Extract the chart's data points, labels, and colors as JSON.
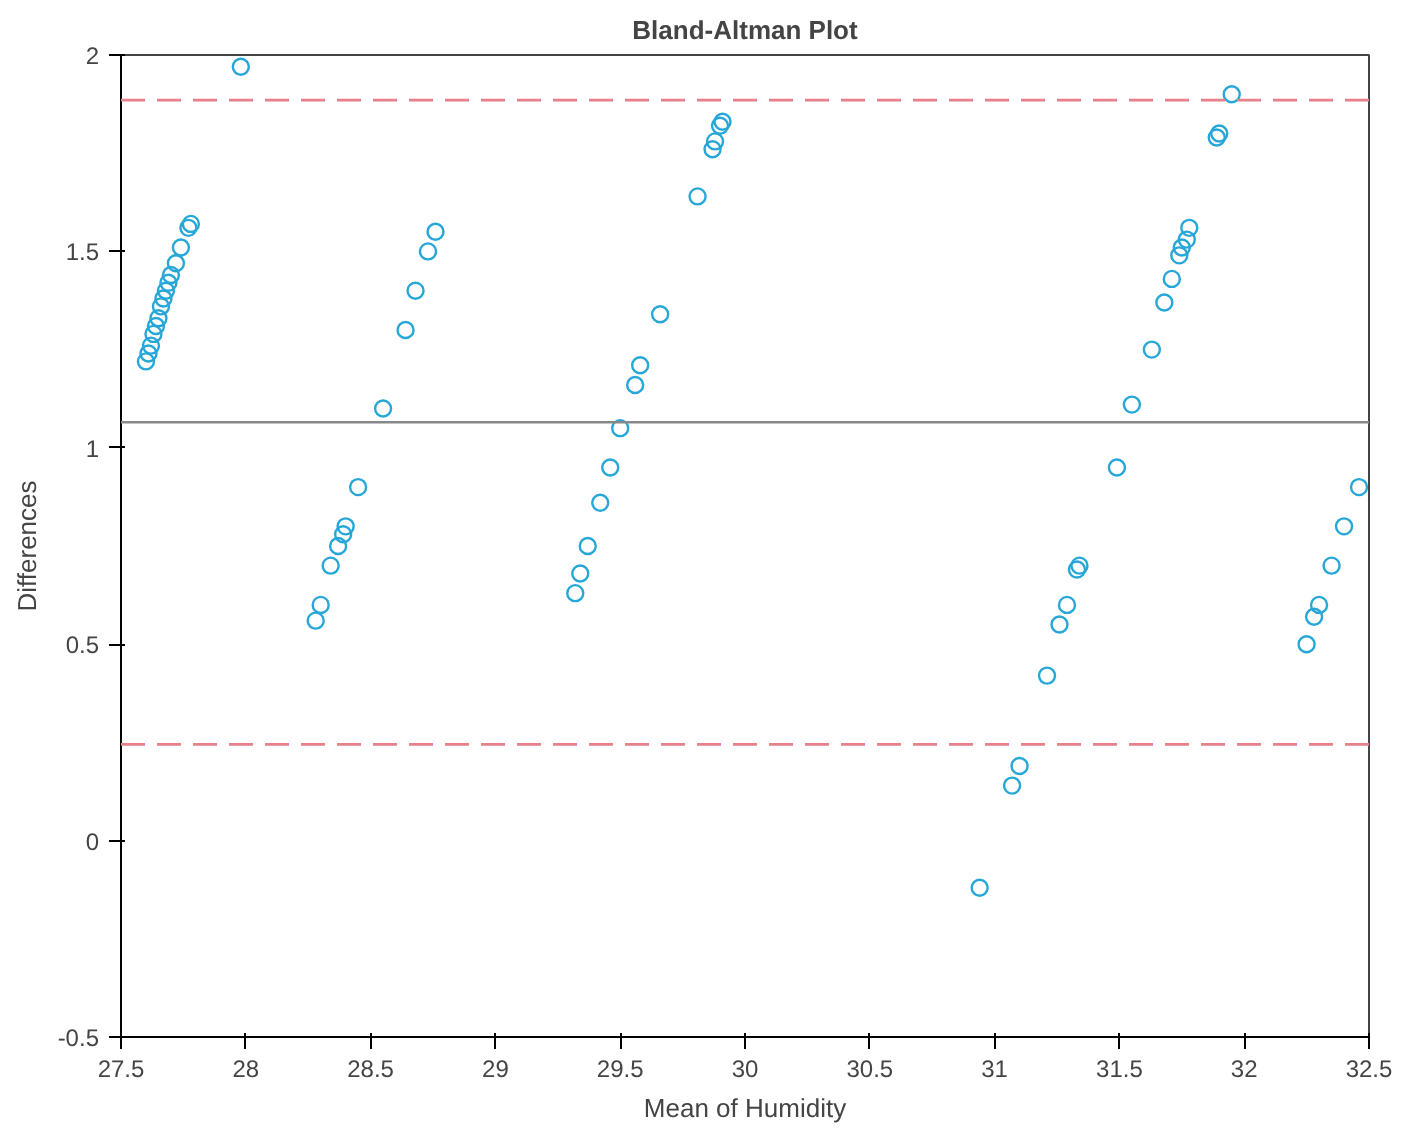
{
  "chart_data": {
    "type": "scatter",
    "title": "Bland-Altman Plot",
    "xlabel": "Mean of Humidity",
    "ylabel": "Differences",
    "xlim": [
      27.5,
      32.5
    ],
    "xticks": [
      27.5,
      28,
      28.5,
      29,
      29.5,
      30,
      30.5,
      31,
      31.5,
      32,
      32.5
    ],
    "ylim": [
      -0.5,
      2
    ],
    "yticks": [
      -0.5,
      0,
      0.5,
      1,
      1.5,
      2
    ],
    "grid": false,
    "marker": "circle",
    "series": [
      {
        "color": "#26a7d8",
        "x": [
          27.6,
          27.61,
          27.62,
          27.63,
          27.64,
          27.65,
          27.66,
          27.67,
          27.68,
          27.69,
          27.7,
          27.72,
          27.74,
          27.77,
          27.78,
          27.98,
          28.28,
          28.3,
          28.34,
          28.37,
          28.39,
          28.4,
          28.45,
          28.55,
          28.64,
          28.68,
          28.73,
          28.76,
          29.32,
          29.34,
          29.37,
          29.42,
          29.46,
          29.5,
          29.56,
          29.58,
          29.66,
          29.81,
          29.87,
          29.88,
          29.9,
          29.91,
          30.94,
          31.07,
          31.1,
          31.21,
          31.26,
          31.29,
          31.33,
          31.34,
          31.49,
          31.55,
          31.63,
          31.68,
          31.71,
          31.74,
          31.75,
          31.77,
          31.78,
          31.89,
          31.9,
          31.95,
          32.25,
          32.28,
          32.3,
          32.35,
          32.4,
          32.46
        ],
        "values": [
          1.22,
          1.24,
          1.26,
          1.29,
          1.31,
          1.33,
          1.36,
          1.38,
          1.4,
          1.42,
          1.44,
          1.47,
          1.51,
          1.56,
          1.57,
          1.97,
          0.56,
          0.6,
          0.7,
          0.75,
          0.78,
          0.8,
          0.9,
          1.1,
          1.3,
          1.4,
          1.5,
          1.55,
          0.63,
          0.68,
          0.75,
          0.86,
          0.95,
          1.05,
          1.16,
          1.21,
          1.34,
          1.64,
          1.76,
          1.78,
          1.82,
          1.83,
          -0.12,
          0.14,
          0.19,
          0.42,
          0.55,
          0.6,
          0.69,
          0.7,
          0.95,
          1.11,
          1.25,
          1.37,
          1.43,
          1.49,
          1.51,
          1.53,
          1.56,
          1.79,
          1.8,
          1.9,
          0.5,
          0.57,
          0.6,
          0.7,
          0.8,
          0.9
        ]
      }
    ],
    "ref_lines": [
      {
        "axis": "y",
        "value": 1.885,
        "color": "#e8808a",
        "line_style": "dashed"
      },
      {
        "axis": "y",
        "value": 1.065,
        "color": "#888888",
        "line_style": "solid"
      },
      {
        "axis": "y",
        "value": 0.245,
        "color": "#e8808a",
        "line_style": "dashed"
      }
    ]
  }
}
